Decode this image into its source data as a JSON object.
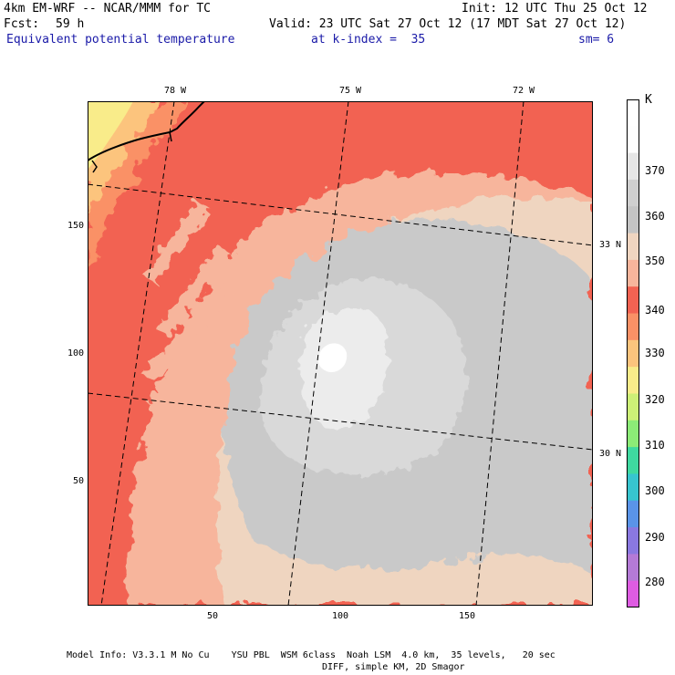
{
  "header": {
    "model": "4km EM-WRF -- NCAR/MMM for TC",
    "init": "Init: 12 UTC Thu 25 Oct 12",
    "fcst_label": "Fcst:",
    "fcst_value": "59 h",
    "valid": "Valid: 23 UTC Sat 27 Oct 12 (17 MDT Sat 27 Oct 12)",
    "field": "Equivalent potential temperature",
    "level": "at k-index =  35",
    "smoothing": "sm= 6"
  },
  "map": {
    "lon_labels": [
      "78 W",
      "75 W",
      "72 W"
    ],
    "lat_labels": [
      "33 N",
      "30 N"
    ],
    "y_ticks": [
      "150",
      "100",
      "50"
    ],
    "x_ticks": [
      "50",
      "100",
      "150"
    ]
  },
  "colorbar": {
    "unit": "K",
    "levels": [
      "370",
      "360",
      "350",
      "340",
      "330",
      "320",
      "310",
      "300",
      "290",
      "280"
    ],
    "colors": [
      "#ffffff",
      "#fefefe",
      "#e6e6e6",
      "#cfcfcf",
      "#c4c4c4",
      "#efd5c0",
      "#f7b59c",
      "#f26252",
      "#fa9166",
      "#fcc47d",
      "#f9ec8a",
      "#cdf077",
      "#8ceb77",
      "#3fd9a0",
      "#37c5cf",
      "#5a94e8",
      "#8a78e0",
      "#b47ad6",
      "#de5ce2"
    ]
  },
  "footer": {
    "line1": "Model Info: V3.3.1 M No Cu    YSU PBL  WSM 6class  Noah LSM  4.0 km,  35 levels,   20 sec",
    "line2": "DIFF, simple KM, 2D Smagor"
  }
}
